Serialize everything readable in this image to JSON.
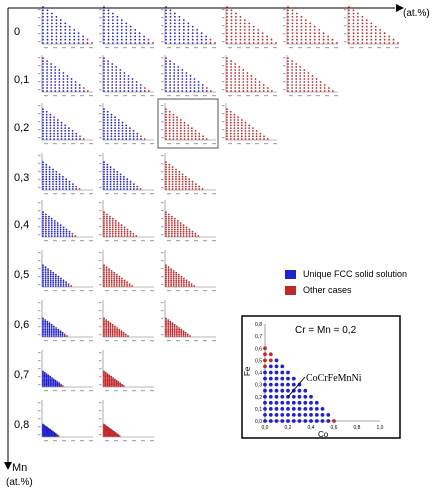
{
  "chart_data": {
    "type": "scatter",
    "description_source": "grid of ternary-style composition maps",
    "top_axis_label": "(at.%)",
    "left_axis_title": "Mn",
    "left_axis_unit": "(at.%)",
    "row_values": [
      "0",
      "0,1",
      "0,2",
      "0,3",
      "0,4",
      "0,5",
      "0,6",
      "0,7",
      "0,8"
    ],
    "panels_per_row": [
      6,
      5,
      4,
      3,
      3,
      3,
      3,
      2,
      2
    ],
    "red_cells_per_row": [
      3,
      2,
      2,
      1,
      2,
      2,
      2,
      1,
      1
    ],
    "highlighted_panel": {
      "row": 2,
      "col": 2
    },
    "series": [
      {
        "name": "Unique FCC solid solution",
        "color": "#2222cc"
      },
      {
        "name": "Other cases",
        "color": "#c0282a"
      }
    ],
    "inset": {
      "title": "Cr = Mn = 0,2",
      "xlabel": "Co",
      "ylabel": "Fe",
      "xticks": [
        "0,0",
        "0,2",
        "0,4",
        "0,6",
        "0,8",
        "1,0"
      ],
      "yticks": [
        "0,0",
        "0,1",
        "0,2",
        "0,3",
        "0,4",
        "0,5",
        "0,6",
        "0,7",
        "0,8"
      ],
      "xlim": [
        0,
        1
      ],
      "ylim": [
        0,
        0.8
      ],
      "annotation": "CoCrFeMnNi",
      "annotation_point": [
        0.2,
        0.2
      ],
      "step": 0.05,
      "sum_limit": 0.6,
      "red_points": [
        [
          0,
          0.6
        ],
        [
          0,
          0.55
        ],
        [
          0.05,
          0.55
        ],
        [
          0,
          0.5
        ],
        [
          0.05,
          0.5
        ],
        [
          0,
          0.45
        ],
        [
          0.6,
          0
        ]
      ]
    }
  }
}
